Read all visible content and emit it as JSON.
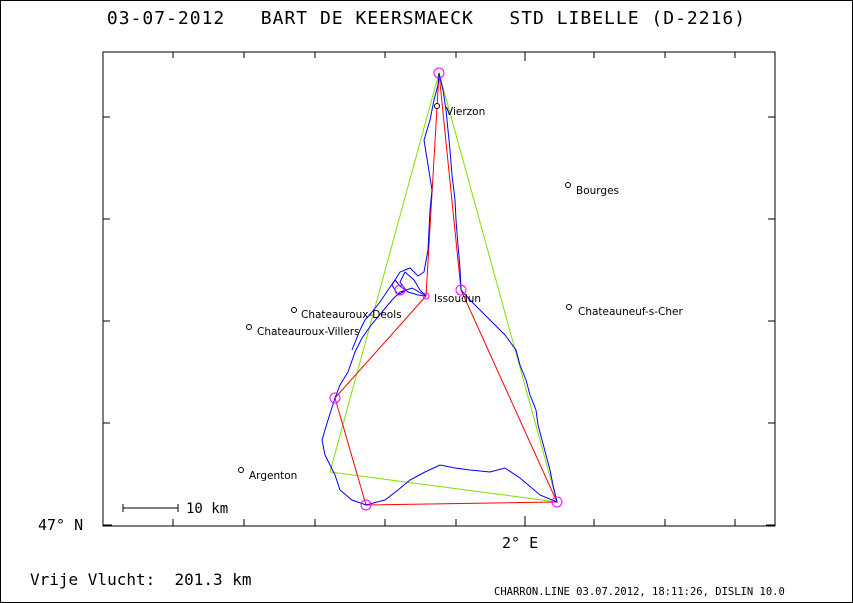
{
  "header": {
    "date": "03-07-2012",
    "pilot": "BART DE KEERSMAECK",
    "glider": "STD LIBELLE (D-2216)"
  },
  "axes": {
    "lat_label": "47° N",
    "lon_label": "2° E"
  },
  "scale_bar": {
    "label": "10 km"
  },
  "places": [
    {
      "name": "Vierzon"
    },
    {
      "name": "Bourges"
    },
    {
      "name": "Issoudun"
    },
    {
      "name": "Chateauroux-Deols"
    },
    {
      "name": "Chateauroux-Villers"
    },
    {
      "name": "Chateauneuf-s-Cher"
    },
    {
      "name": "Argenton"
    }
  ],
  "stats": {
    "label": "Vrije Vlucht:",
    "distance": "201.3 km"
  },
  "footer": {
    "text": "CHARRON.LINE 03.07.2012, 18:11:26, DISLIN 10.0"
  },
  "colors": {
    "track": "#0000ff",
    "task_line": "#ff0000",
    "triangle_line": "#80e000",
    "turnpoint": "#ff00ff",
    "axis": "#000000"
  }
}
